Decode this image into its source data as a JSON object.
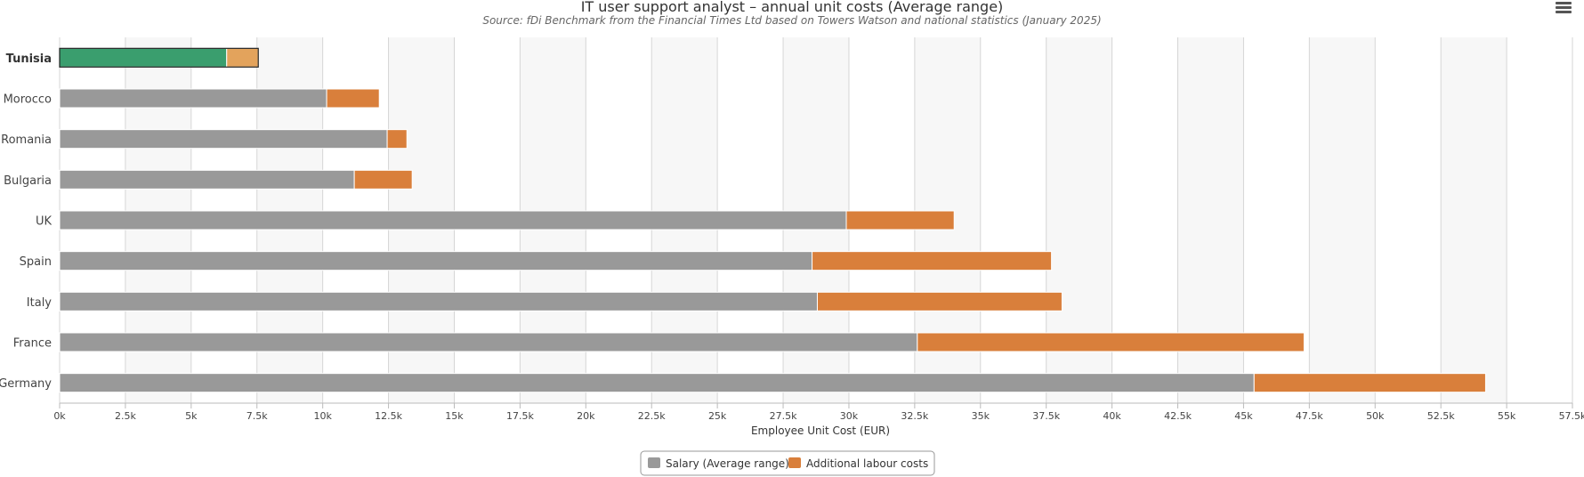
{
  "chart_data": {
    "type": "bar",
    "orientation": "horizontal",
    "stacked": true,
    "title": "IT user support analyst – annual unit costs (Average range)",
    "subtitle": "Source: fDi Benchmark from the Financial Times Ltd based on Towers Watson and national statistics (January 2025)",
    "categories": [
      "Tunisia",
      "Morocco",
      "Romania",
      "Bulgaria",
      "UK",
      "Spain",
      "Italy",
      "France",
      "Germany"
    ],
    "highlight_category": "Tunisia",
    "series": [
      {
        "name": "Salary (Average range)",
        "color": "#999999",
        "highlight_color": "#3a9e6e",
        "values": [
          6350,
          10150,
          12450,
          11200,
          29900,
          28600,
          28800,
          32600,
          45400
        ]
      },
      {
        "name": "Additional labour costs",
        "color": "#d97f3b",
        "highlight_color": "#e3a35c",
        "values": [
          1200,
          2000,
          750,
          2200,
          4100,
          9100,
          9300,
          14700,
          8800
        ]
      }
    ],
    "xlabel": "Employee Unit Cost (EUR)",
    "xlim": [
      0,
      57500
    ],
    "xtick_step": 2500,
    "xtick_labels": [
      "0k",
      "2.5k",
      "5k",
      "7.5k",
      "10k",
      "12.5k",
      "15k",
      "17.5k",
      "20k",
      "22.5k",
      "25k",
      "27.5k",
      "30k",
      "32.5k",
      "35k",
      "37.5k",
      "40k",
      "42.5k",
      "45k",
      "47.5k",
      "50k",
      "52.5k",
      "55k",
      "57.5k"
    ],
    "grid": true,
    "legend_position": "bottom-center"
  },
  "ui": {
    "menu_icon": "hamburger-menu-icon"
  }
}
